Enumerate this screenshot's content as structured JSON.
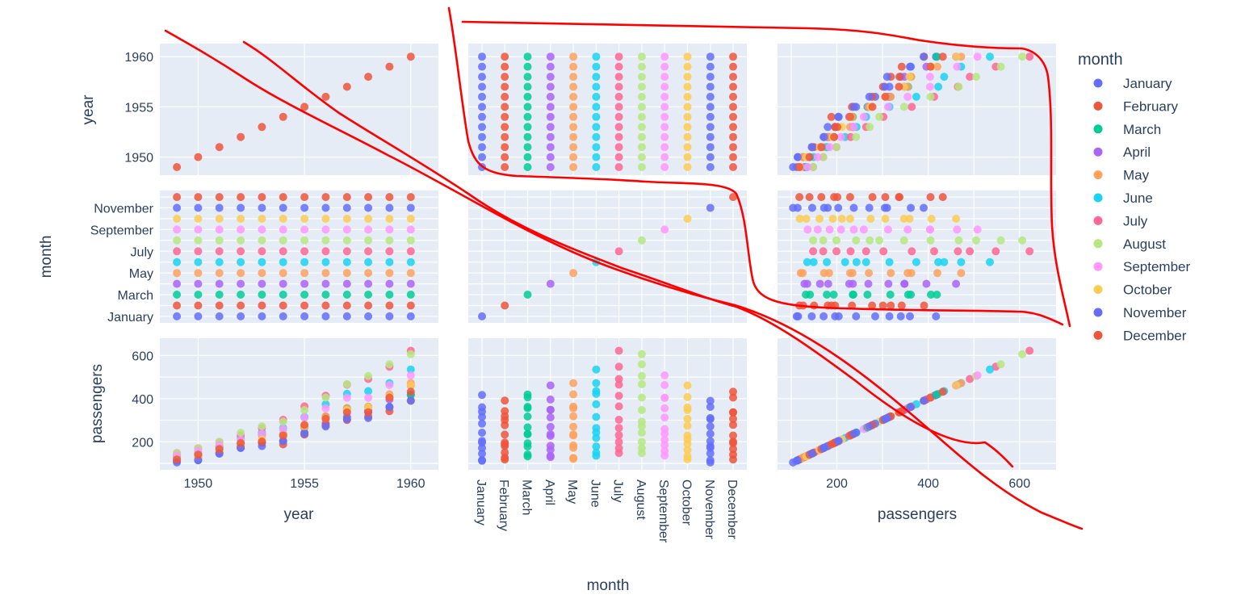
{
  "chart_data": {
    "type": "scatter_matrix",
    "dimensions": [
      "year",
      "month",
      "passengers"
    ],
    "legend": {
      "title": "month",
      "position": "top-right",
      "entries": [
        "January",
        "February",
        "March",
        "April",
        "May",
        "June",
        "July",
        "August",
        "September",
        "October",
        "November",
        "December"
      ]
    },
    "colors": {
      "January": "#636efa",
      "February": "#EF553B",
      "March": "#00cc96",
      "April": "#ab63fa",
      "May": "#FFA15A",
      "June": "#19d3f3",
      "July": "#FF6692",
      "August": "#B6E880",
      "September": "#FF97FF",
      "October": "#FECB52",
      "November": "#636efa",
      "December": "#EF553B"
    },
    "annotation_color": "#ff0000",
    "years": [
      1949,
      1950,
      1951,
      1952,
      1953,
      1954,
      1955,
      1956,
      1957,
      1958,
      1959,
      1960
    ],
    "months": [
      "January",
      "February",
      "March",
      "April",
      "May",
      "June",
      "July",
      "August",
      "September",
      "October",
      "November",
      "December"
    ],
    "passengers": [
      [
        112,
        118,
        132,
        129,
        121,
        135,
        148,
        148,
        136,
        119,
        104,
        118
      ],
      [
        115,
        126,
        141,
        135,
        125,
        149,
        170,
        170,
        158,
        133,
        114,
        140
      ],
      [
        145,
        150,
        178,
        163,
        172,
        178,
        199,
        199,
        184,
        162,
        146,
        166
      ],
      [
        171,
        180,
        193,
        181,
        183,
        218,
        230,
        242,
        209,
        191,
        172,
        194
      ],
      [
        196,
        196,
        236,
        235,
        229,
        243,
        264,
        272,
        237,
        211,
        180,
        201
      ],
      [
        204,
        188,
        235,
        227,
        234,
        264,
        302,
        293,
        259,
        229,
        203,
        229
      ],
      [
        242,
        233,
        267,
        269,
        270,
        315,
        364,
        347,
        312,
        274,
        237,
        278
      ],
      [
        284,
        277,
        317,
        313,
        318,
        374,
        413,
        405,
        355,
        306,
        271,
        306
      ],
      [
        315,
        301,
        356,
        348,
        355,
        422,
        465,
        467,
        404,
        347,
        305,
        336
      ],
      [
        340,
        318,
        362,
        348,
        363,
        435,
        491,
        505,
        404,
        359,
        310,
        337
      ],
      [
        360,
        342,
        406,
        396,
        420,
        472,
        548,
        559,
        463,
        407,
        362,
        405
      ],
      [
        417,
        391,
        419,
        461,
        472,
        535,
        622,
        606,
        508,
        461,
        390,
        432
      ]
    ],
    "axes": {
      "year": {
        "label": "year",
        "ticks": [
          "1950",
          "1955",
          "1960"
        ],
        "range": [
          1948.2,
          1961.3
        ]
      },
      "month": {
        "label": "month",
        "ticks_y": [
          "January",
          "March",
          "May",
          "July",
          "September",
          "November"
        ],
        "ticks_x": [
          "January",
          "February",
          "March",
          "April",
          "May",
          "June",
          "July",
          "August",
          "September",
          "October",
          "November",
          "December"
        ]
      },
      "passengers": {
        "label": "passengers",
        "ticks": [
          "200",
          "400",
          "600"
        ],
        "range": [
          70,
          680
        ]
      }
    }
  }
}
